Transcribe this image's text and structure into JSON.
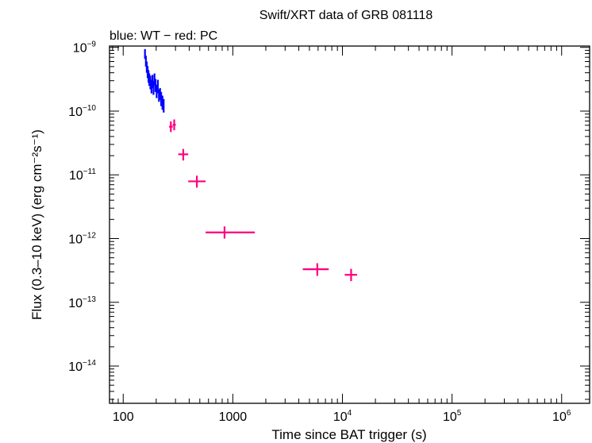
{
  "chart_data": {
    "type": "scatter",
    "title": "Swift/XRT data of GRB 081118",
    "subtitle": "blue: WT − red: PC",
    "xlabel": "Time since BAT trigger (s)",
    "ylabel": "Flux (0.3–10 keV) (erg cm⁻²s⁻¹)",
    "xscale": "log",
    "yscale": "log",
    "xlim": [
      75,
      1800000
    ],
    "ylim": [
      2.6e-15,
      1.05e-09
    ],
    "x_ticks": [
      {
        "value": 100,
        "label": "100"
      },
      {
        "value": 1000,
        "label": "1000"
      },
      {
        "value": 10000,
        "base": "10",
        "exp": "4"
      },
      {
        "value": 100000,
        "base": "10",
        "exp": "5"
      },
      {
        "value": 1000000,
        "base": "10",
        "exp": "6"
      }
    ],
    "y_ticks": [
      {
        "value": 1e-09,
        "base": "10",
        "exp": "−9"
      },
      {
        "value": 1e-10,
        "base": "10",
        "exp": "−10"
      },
      {
        "value": 1e-11,
        "base": "10",
        "exp": "−11"
      },
      {
        "value": 1e-12,
        "base": "10",
        "exp": "−12"
      },
      {
        "value": 1e-13,
        "base": "10",
        "exp": "−13"
      },
      {
        "value": 1e-14,
        "base": "10",
        "exp": "−14"
      }
    ],
    "series": [
      {
        "name": "WT",
        "color": "#0000ff",
        "points": [
          {
            "x": 158,
            "y": 8e-10,
            "xlo": 157,
            "xhi": 159,
            "ylo": 6.6e-10,
            "yhi": 9.4e-10
          },
          {
            "x": 161,
            "y": 6.2e-10,
            "xlo": 160,
            "xhi": 162,
            "ylo": 5e-10,
            "yhi": 7.4e-10
          },
          {
            "x": 164,
            "y": 5e-10,
            "xlo": 163,
            "xhi": 165,
            "ylo": 4e-10,
            "yhi": 6e-10
          },
          {
            "x": 167,
            "y": 4.2e-10,
            "xlo": 166,
            "xhi": 168,
            "ylo": 3.3e-10,
            "yhi": 5.1e-10
          },
          {
            "x": 170,
            "y": 3.6e-10,
            "xlo": 169,
            "xhi": 171,
            "ylo": 2.8e-10,
            "yhi": 4.4e-10
          },
          {
            "x": 173,
            "y": 3.2e-10,
            "xlo": 172,
            "xhi": 174,
            "ylo": 2.5e-10,
            "yhi": 3.9e-10
          },
          {
            "x": 177,
            "y": 2.9e-10,
            "xlo": 176,
            "xhi": 178,
            "ylo": 2.2e-10,
            "yhi": 3.6e-10
          },
          {
            "x": 181,
            "y": 2.5e-10,
            "xlo": 180,
            "xhi": 182,
            "ylo": 1.9e-10,
            "yhi": 3.1e-10
          },
          {
            "x": 185,
            "y": 3e-10,
            "xlo": 184,
            "xhi": 186,
            "ylo": 2.3e-10,
            "yhi": 3.7e-10
          },
          {
            "x": 189,
            "y": 2.4e-10,
            "xlo": 188,
            "xhi": 190,
            "ylo": 1.8e-10,
            "yhi": 3e-10
          },
          {
            "x": 193,
            "y": 3.2e-10,
            "xlo": 192,
            "xhi": 194,
            "ylo": 2.5e-10,
            "yhi": 3.9e-10
          },
          {
            "x": 197,
            "y": 2.6e-10,
            "xlo": 196,
            "xhi": 198,
            "ylo": 2e-10,
            "yhi": 3.2e-10
          },
          {
            "x": 202,
            "y": 2.1e-10,
            "xlo": 201,
            "xhi": 203,
            "ylo": 1.6e-10,
            "yhi": 2.6e-10
          },
          {
            "x": 207,
            "y": 2.5e-10,
            "xlo": 206,
            "xhi": 208,
            "ylo": 1.9e-10,
            "yhi": 3.1e-10
          },
          {
            "x": 212,
            "y": 1.8e-10,
            "xlo": 211,
            "xhi": 213,
            "ylo": 1.4e-10,
            "yhi": 2.2e-10
          },
          {
            "x": 217,
            "y": 1.9e-10,
            "xlo": 216,
            "xhi": 218,
            "ylo": 1.5e-10,
            "yhi": 2.3e-10
          },
          {
            "x": 222,
            "y": 1.6e-10,
            "xlo": 221,
            "xhi": 223,
            "ylo": 1.2e-10,
            "yhi": 2e-10
          },
          {
            "x": 228,
            "y": 1.4e-10,
            "xlo": 227,
            "xhi": 229,
            "ylo": 1.05e-10,
            "yhi": 1.75e-10
          },
          {
            "x": 234,
            "y": 1.25e-10,
            "xlo": 233,
            "xhi": 235,
            "ylo": 9.5e-11,
            "yhi": 1.55e-10
          }
        ]
      },
      {
        "name": "PC",
        "color": "#ff007f",
        "points": [
          {
            "x": 272,
            "y": 5.7e-11,
            "xlo": 262,
            "xhi": 283,
            "ylo": 4.7e-11,
            "yhi": 6.9e-11
          },
          {
            "x": 292,
            "y": 6.1e-11,
            "xlo": 283,
            "xhi": 302,
            "ylo": 5e-11,
            "yhi": 7.4e-11
          },
          {
            "x": 353,
            "y": 2.1e-11,
            "xlo": 318,
            "xhi": 392,
            "ylo": 1.68e-11,
            "yhi": 2.55e-11
          },
          {
            "x": 470,
            "y": 7.9e-12,
            "xlo": 392,
            "xhi": 565,
            "ylo": 6.3e-12,
            "yhi": 9.7e-12
          },
          {
            "x": 840,
            "y": 1.25e-12,
            "xlo": 565,
            "xhi": 1590,
            "ylo": 1e-12,
            "yhi": 1.55e-12
          },
          {
            "x": 5900,
            "y": 3.3e-13,
            "xlo": 4350,
            "xhi": 7500,
            "ylo": 2.6e-13,
            "yhi": 4.1e-13
          },
          {
            "x": 12000,
            "y": 2.7e-13,
            "xlo": 10500,
            "xhi": 13600,
            "ylo": 2.15e-13,
            "yhi": 3.35e-13
          }
        ]
      }
    ]
  }
}
